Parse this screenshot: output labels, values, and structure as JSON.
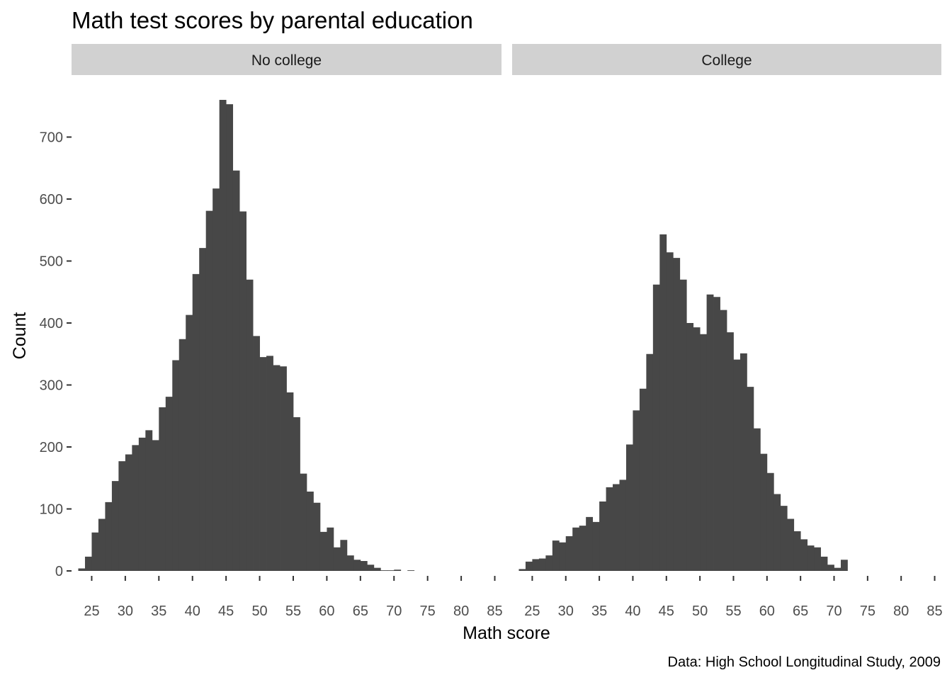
{
  "chart_data": {
    "type": "bar",
    "title": "Math test scores by parental education",
    "xlabel": "Math score",
    "ylabel": "Count",
    "caption": "Data: High School Longitudinal Study, 2009",
    "xlim": [
      22,
      86
    ],
    "ylim": [
      0,
      760
    ],
    "x_ticks": [
      "25",
      "30",
      "35",
      "40",
      "45",
      "50",
      "55",
      "60",
      "65",
      "70",
      "75",
      "80",
      "85"
    ],
    "y_ticks": [
      "0",
      "100",
      "200",
      "300",
      "400",
      "500",
      "600",
      "700"
    ],
    "grid": false,
    "legend": "none",
    "bar_color": "#474747",
    "strip_color": "#d1d1d1",
    "bin_width": 1,
    "bin_start": 23,
    "panels": [
      {
        "label": "No college",
        "counts": [
          4,
          23,
          62,
          84,
          111,
          145,
          177,
          188,
          203,
          215,
          227,
          211,
          264,
          281,
          340,
          374,
          413,
          479,
          521,
          581,
          617,
          760,
          753,
          646,
          580,
          470,
          379,
          345,
          347,
          332,
          330,
          288,
          248,
          157,
          128,
          110,
          63,
          70,
          38,
          50,
          25,
          18,
          16,
          10,
          5,
          1,
          1,
          2,
          0,
          1,
          0
        ]
      },
      {
        "label": "College",
        "counts": [
          3,
          15,
          19,
          20,
          25,
          49,
          46,
          56,
          70,
          73,
          87,
          79,
          112,
          135,
          140,
          147,
          204,
          259,
          294,
          350,
          462,
          543,
          514,
          505,
          470,
          400,
          393,
          382,
          446,
          442,
          421,
          385,
          341,
          351,
          297,
          230,
          189,
          158,
          124,
          105,
          84,
          64,
          51,
          41,
          38,
          23,
          10,
          5,
          18
        ]
      }
    ]
  }
}
